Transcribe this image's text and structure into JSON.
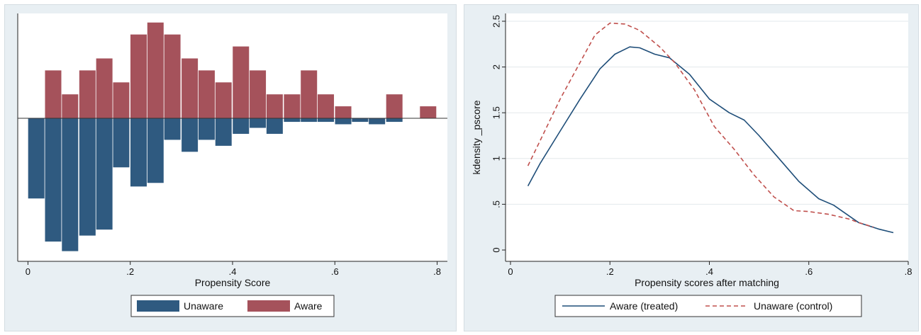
{
  "chart_data": [
    {
      "type": "bar",
      "title": "",
      "xlabel": "Propensity Score",
      "ylabel": "",
      "xlim": [
        -0.02,
        0.82
      ],
      "xticks": [
        "0",
        ".2",
        ".4",
        ".6",
        ".8"
      ],
      "xtick_values": [
        0,
        0.2,
        0.4,
        0.6,
        0.8
      ],
      "grid": false,
      "legend_position": "bottom",
      "colors": {
        "aware": "#a5525b",
        "unaware": "#2f5a80"
      },
      "x": [
        0.017,
        0.05,
        0.083,
        0.117,
        0.15,
        0.183,
        0.217,
        0.25,
        0.283,
        0.317,
        0.35,
        0.383,
        0.417,
        0.45,
        0.483,
        0.517,
        0.55,
        0.583,
        0.617,
        0.65,
        0.683,
        0.717,
        0.75,
        0.783
      ],
      "series": [
        {
          "name": "Aware",
          "values": [
            0,
            4,
            2,
            4,
            5,
            3,
            7,
            8,
            7,
            5,
            4,
            3,
            6,
            4,
            2,
            2,
            4,
            2,
            1,
            0,
            0,
            2,
            0,
            1
          ]
        },
        {
          "name": "Unaware",
          "values": [
            -6.7,
            -10.3,
            -11.1,
            -9.8,
            -9.3,
            -4.1,
            -5.7,
            -5.4,
            -1.8,
            -2.8,
            -1.8,
            -2.3,
            -1.3,
            -0.8,
            -1.3,
            -0.3,
            -0.3,
            -0.3,
            -0.5,
            -0.3,
            -0.5,
            -0.3,
            0,
            0
          ]
        }
      ],
      "legend": [
        "Unaware",
        "Aware"
      ]
    },
    {
      "type": "line",
      "title": "",
      "xlabel": "Propensity scores after matching",
      "ylabel": "kdensity _pscore",
      "xlim": [
        -0.01,
        0.8
      ],
      "ylim": [
        0,
        2.5
      ],
      "xticks": [
        "0",
        ".2",
        ".4",
        ".6",
        ".8"
      ],
      "xtick_values": [
        0,
        0.2,
        0.4,
        0.6,
        0.8
      ],
      "yticks": [
        "0",
        ".5",
        "1",
        "1.5",
        "2",
        "2.5"
      ],
      "ytick_values": [
        0,
        0.5,
        1,
        1.5,
        2,
        2.5
      ],
      "grid": true,
      "legend_position": "bottom",
      "series": [
        {
          "name": "Aware (treated)",
          "color": "#1f4e79",
          "dash": "solid",
          "x": [
            0.035,
            0.06,
            0.1,
            0.14,
            0.18,
            0.21,
            0.24,
            0.26,
            0.29,
            0.32,
            0.36,
            0.4,
            0.44,
            0.47,
            0.5,
            0.54,
            0.58,
            0.62,
            0.65,
            0.7,
            0.74,
            0.77
          ],
          "y": [
            0.7,
            0.95,
            1.3,
            1.65,
            1.98,
            2.14,
            2.22,
            2.21,
            2.14,
            2.1,
            1.92,
            1.65,
            1.5,
            1.42,
            1.25,
            1.0,
            0.75,
            0.56,
            0.49,
            0.3,
            0.23,
            0.19
          ]
        },
        {
          "name": "Unaware (control)",
          "color": "#c0504d",
          "dash": "dashed",
          "x": [
            0.035,
            0.06,
            0.1,
            0.14,
            0.17,
            0.2,
            0.23,
            0.26,
            0.3,
            0.33,
            0.37,
            0.41,
            0.45,
            0.49,
            0.53,
            0.57,
            0.6,
            0.64,
            0.68,
            0.7,
            0.73
          ],
          "y": [
            0.92,
            1.2,
            1.65,
            2.05,
            2.35,
            2.48,
            2.47,
            2.4,
            2.22,
            2.05,
            1.75,
            1.35,
            1.1,
            0.82,
            0.58,
            0.43,
            0.42,
            0.39,
            0.34,
            0.3,
            0.25
          ]
        }
      ],
      "legend": [
        "Aware (treated)",
        "Unaware (control)"
      ]
    }
  ]
}
